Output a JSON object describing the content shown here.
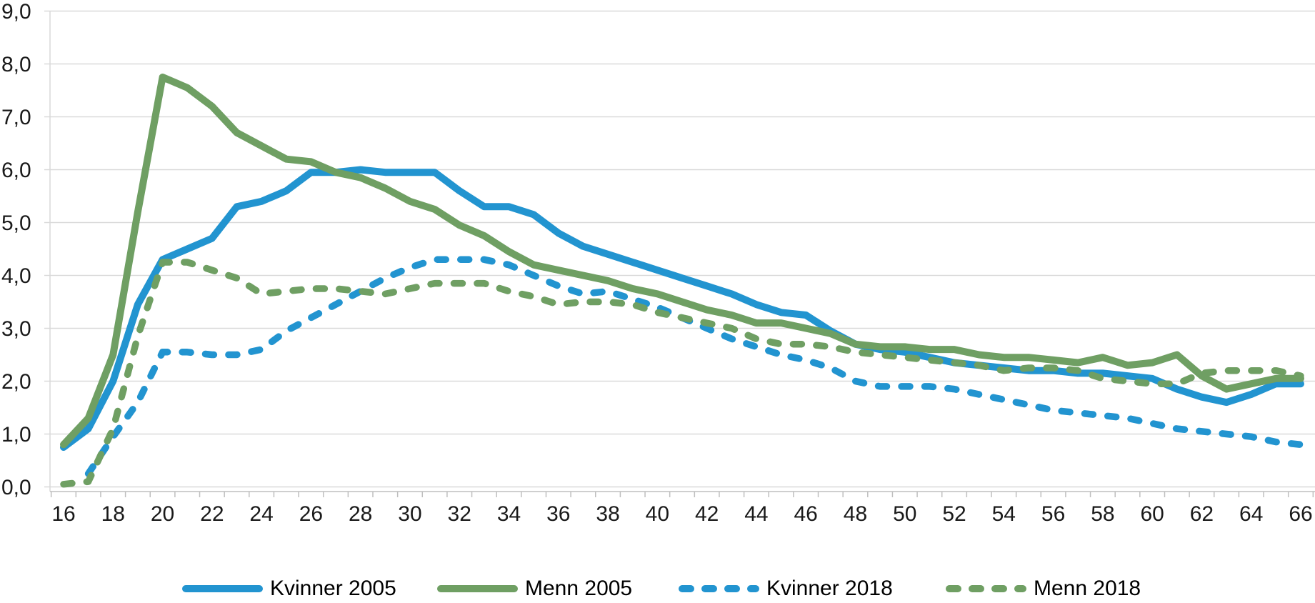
{
  "chart_data": {
    "type": "line",
    "title": "",
    "xlabel": "",
    "ylabel": "",
    "x": [
      16,
      17,
      18,
      19,
      20,
      21,
      22,
      23,
      24,
      25,
      26,
      27,
      28,
      29,
      30,
      31,
      32,
      33,
      34,
      35,
      36,
      37,
      38,
      39,
      40,
      41,
      42,
      43,
      44,
      45,
      46,
      47,
      48,
      49,
      50,
      51,
      52,
      53,
      54,
      55,
      56,
      57,
      58,
      59,
      60,
      61,
      62,
      63,
      64,
      65,
      66
    ],
    "xlim": [
      16,
      66
    ],
    "ylim": [
      0,
      9
    ],
    "grid": true,
    "legend_position": "bottom",
    "ytick_labels": [
      "0,0",
      "1,0",
      "2,0",
      "3,0",
      "4,0",
      "5,0",
      "6,0",
      "7,0",
      "8,0",
      "9,0"
    ],
    "xtick_labels": [
      "16",
      "18",
      "20",
      "22",
      "24",
      "26",
      "28",
      "30",
      "32",
      "34",
      "36",
      "38",
      "40",
      "42",
      "44",
      "46",
      "48",
      "50",
      "52",
      "54",
      "56",
      "58",
      "60",
      "62",
      "64",
      "66"
    ],
    "series": [
      {
        "name": "Kvinner 2005",
        "color": "#2294D0",
        "style": "solid",
        "values": [
          0.75,
          1.1,
          2.0,
          3.45,
          4.3,
          4.5,
          4.7,
          5.3,
          5.4,
          5.6,
          5.95,
          5.95,
          6.0,
          5.95,
          5.95,
          5.95,
          5.6,
          5.3,
          5.3,
          5.15,
          4.8,
          4.55,
          4.4,
          4.25,
          4.1,
          3.95,
          3.8,
          3.65,
          3.45,
          3.3,
          3.25,
          2.95,
          2.7,
          2.6,
          2.55,
          2.45,
          2.35,
          2.3,
          2.25,
          2.2,
          2.2,
          2.15,
          2.15,
          2.1,
          2.05,
          1.85,
          1.7,
          1.6,
          1.75,
          1.95,
          1.95
        ]
      },
      {
        "name": "Menn 2005",
        "color": "#6F9F63",
        "style": "solid",
        "values": [
          0.8,
          1.3,
          2.5,
          5.2,
          7.75,
          7.55,
          7.2,
          6.7,
          6.45,
          6.2,
          6.15,
          5.95,
          5.85,
          5.65,
          5.4,
          5.25,
          4.95,
          4.75,
          4.45,
          4.2,
          4.1,
          4.0,
          3.9,
          3.75,
          3.65,
          3.5,
          3.35,
          3.25,
          3.1,
          3.1,
          3.0,
          2.9,
          2.7,
          2.65,
          2.65,
          2.6,
          2.6,
          2.5,
          2.45,
          2.45,
          2.4,
          2.35,
          2.45,
          2.3,
          2.35,
          2.5,
          2.1,
          1.85,
          1.95,
          2.05,
          2.05
        ]
      },
      {
        "name": "Kvinner 2018",
        "color": "#2294D0",
        "style": "dashed",
        "values": [
          null,
          0.25,
          0.95,
          1.6,
          2.55,
          2.55,
          2.5,
          2.5,
          2.6,
          2.95,
          3.2,
          3.45,
          3.7,
          3.95,
          4.15,
          4.3,
          4.3,
          4.3,
          4.2,
          4.0,
          3.8,
          3.65,
          3.7,
          3.55,
          3.4,
          3.2,
          3.0,
          2.8,
          2.65,
          2.5,
          2.4,
          2.25,
          2.0,
          1.9,
          1.9,
          1.9,
          1.85,
          1.75,
          1.65,
          1.55,
          1.45,
          1.4,
          1.35,
          1.3,
          1.2,
          1.1,
          1.05,
          1.0,
          0.95,
          0.85,
          0.8
        ]
      },
      {
        "name": "Menn 2018",
        "color": "#6F9F63",
        "style": "dashed",
        "values": [
          0.05,
          0.1,
          1.1,
          2.85,
          4.25,
          4.25,
          4.1,
          3.95,
          3.65,
          3.7,
          3.75,
          3.75,
          3.7,
          3.65,
          3.75,
          3.85,
          3.85,
          3.85,
          3.7,
          3.6,
          3.45,
          3.5,
          3.5,
          3.45,
          3.3,
          3.2,
          3.1,
          3.0,
          2.8,
          2.7,
          2.7,
          2.65,
          2.55,
          2.5,
          2.45,
          2.4,
          2.35,
          2.3,
          2.2,
          2.25,
          2.25,
          2.2,
          2.05,
          2.0,
          1.95,
          1.95,
          2.15,
          2.2,
          2.2,
          2.2,
          2.1
        ]
      }
    ],
    "colors": {
      "gridline": "#D9D9D9",
      "axis_line": "#BFBFBF",
      "axis_text": "#1A1A1A",
      "legend_text": "#000000",
      "background": "#FFFFFF"
    }
  }
}
